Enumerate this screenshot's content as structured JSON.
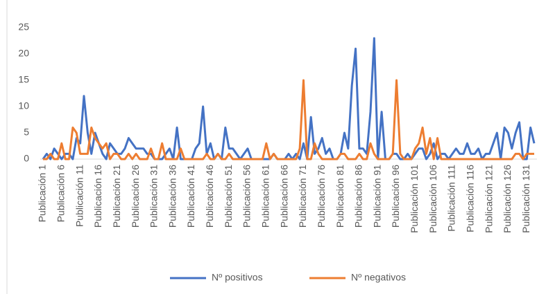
{
  "chart_data": {
    "type": "line",
    "categories": [
      "Publicación 1",
      null,
      null,
      null,
      null,
      "Publicación 6",
      null,
      null,
      null,
      null,
      "Publicación 11",
      null,
      null,
      null,
      null,
      "Publicación 16",
      null,
      null,
      null,
      null,
      "Publicación 21",
      null,
      null,
      null,
      null,
      "Publicación 26",
      null,
      null,
      null,
      null,
      "Publicación 31",
      null,
      null,
      null,
      null,
      "Publicación 36",
      null,
      null,
      null,
      null,
      "Publicación 41",
      null,
      null,
      null,
      null,
      "Publicación 46",
      null,
      null,
      null,
      null,
      "Publicación 51",
      null,
      null,
      null,
      null,
      "Publicación 56",
      null,
      null,
      null,
      null,
      "Publicación 61",
      null,
      null,
      null,
      null,
      "Publicación 66",
      null,
      null,
      null,
      null,
      "Publicación 71",
      null,
      null,
      null,
      null,
      "Publicación 76",
      null,
      null,
      null,
      null,
      "Publicación 81",
      null,
      null,
      null,
      null,
      "Publicación 86",
      null,
      null,
      null,
      null,
      "Publicación 91",
      null,
      null,
      null,
      null,
      "Publicación 96",
      null,
      null,
      null,
      null,
      "Publicación 101",
      null,
      null,
      null,
      null,
      "Publicación 106",
      null,
      null,
      null,
      null,
      "Publicación 111",
      null,
      null,
      null,
      null,
      "Publicación 116",
      null,
      null,
      null,
      null,
      "Publicación 121",
      null,
      null,
      null,
      null,
      "Publicación 126",
      null,
      null,
      null,
      null,
      "Publicación 131",
      null,
      null
    ],
    "series": [
      {
        "name": "Nº positivos",
        "color": "#4472c4",
        "values": [
          0,
          1,
          0,
          2,
          1,
          0,
          1,
          1,
          0,
          4,
          3,
          12,
          5,
          1,
          5,
          3,
          1,
          0,
          3,
          2,
          1,
          1,
          2,
          4,
          3,
          2,
          2,
          2,
          1,
          1,
          0,
          0,
          0,
          1,
          2,
          0,
          6,
          0,
          0,
          0,
          0,
          2,
          3,
          10,
          1,
          3,
          0,
          1,
          0,
          6,
          2,
          2,
          1,
          0,
          1,
          2,
          0,
          0,
          0,
          0,
          0,
          0,
          1,
          0,
          0,
          0,
          1,
          0,
          1,
          0,
          3,
          0,
          8,
          1,
          2,
          4,
          1,
          2,
          0,
          0,
          1,
          5,
          2,
          14,
          21,
          2,
          2,
          1,
          9,
          23,
          0,
          9,
          0,
          0,
          1,
          1,
          0,
          0,
          1,
          0,
          1,
          2,
          2,
          0,
          1,
          3,
          0,
          1,
          1,
          0,
          1,
          2,
          1,
          1,
          3,
          1,
          1,
          2,
          0,
          1,
          1,
          3,
          5,
          0,
          6,
          5,
          2,
          5,
          7,
          0,
          0,
          6,
          3
        ]
      },
      {
        "name": "Nº negativos",
        "color": "#ed7d31",
        "values": [
          0,
          0,
          1,
          0,
          0,
          3,
          0,
          0,
          6,
          5,
          1,
          1,
          1,
          6,
          4,
          3,
          2,
          3,
          0,
          1,
          1,
          0,
          0,
          1,
          0,
          1,
          0,
          0,
          0,
          2,
          0,
          0,
          3,
          0,
          0,
          0,
          0,
          2,
          0,
          0,
          0,
          0,
          0,
          0,
          1,
          0,
          0,
          1,
          0,
          0,
          1,
          0,
          0,
          0,
          0,
          0,
          0,
          0,
          0,
          0,
          3,
          0,
          1,
          0,
          0,
          0,
          0,
          0,
          0,
          2,
          15,
          0,
          0,
          3,
          1,
          0,
          0,
          0,
          0,
          0,
          1,
          1,
          0,
          0,
          0,
          1,
          0,
          0,
          3,
          1,
          0,
          0,
          0,
          0,
          1,
          15,
          1,
          0,
          0,
          0,
          2,
          3,
          6,
          1,
          4,
          0,
          4,
          0,
          0,
          0,
          0,
          0,
          0,
          0,
          0,
          0,
          0,
          0,
          0,
          0,
          0,
          0,
          0,
          0,
          0,
          0,
          0,
          1,
          1,
          0,
          1,
          1,
          1
        ]
      }
    ],
    "ylim": [
      0,
      25
    ],
    "yticks": [
      0,
      5,
      10,
      15,
      20,
      25
    ],
    "grid": false,
    "legend": "bottom"
  }
}
